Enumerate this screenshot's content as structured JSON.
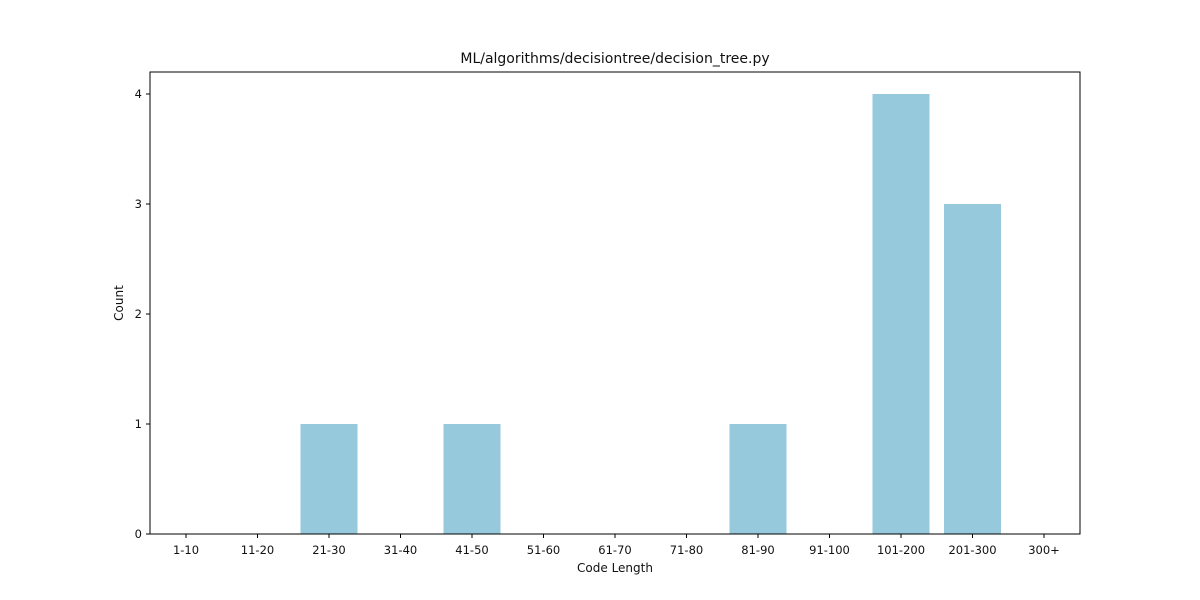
{
  "chart_data": {
    "type": "bar",
    "title": "ML/algorithms/decisiontree/decision_tree.py",
    "xlabel": "Code Length",
    "ylabel": "Count",
    "categories": [
      "1-10",
      "11-20",
      "21-30",
      "31-40",
      "41-50",
      "51-60",
      "61-70",
      "71-80",
      "81-90",
      "91-100",
      "101-200",
      "201-300",
      "300+"
    ],
    "values": [
      0,
      0,
      1,
      0,
      1,
      0,
      0,
      0,
      1,
      0,
      4,
      3,
      0
    ],
    "yticks": [
      "0",
      "1",
      "2",
      "3",
      "4"
    ],
    "ylim": [
      0,
      4.2
    ],
    "grid": false,
    "legend": "none",
    "colors": {
      "bar": "#96c9dc",
      "frame": "#000000",
      "background": "#ffffff"
    }
  }
}
